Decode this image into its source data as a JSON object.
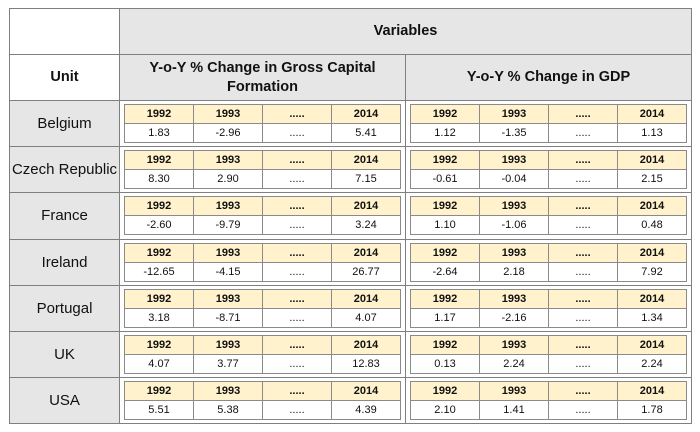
{
  "header": {
    "variables": "Variables",
    "unit": "Unit",
    "gcf": "Y-o-Y % Change in Gross Capital Formation",
    "gdp": "Y-o-Y % Change in GDP"
  },
  "year_labels": [
    "1992",
    "1993",
    ".....",
    "2014"
  ],
  "rows": [
    {
      "unit": "Belgium",
      "gcf_years": [
        "1992",
        "1993",
        ".....",
        "2014"
      ],
      "gcf": [
        "1.83",
        "-2.96",
        ".....",
        "5.41"
      ],
      "gdp_years": [
        "1992",
        "1993",
        ".....",
        "2014"
      ],
      "gdp": [
        "1.12",
        "-1.35",
        ".....",
        "1.13"
      ]
    },
    {
      "unit": "Czech Republic",
      "gcf_years": [
        "1992",
        "1993",
        ".....",
        "2014"
      ],
      "gcf": [
        "8.30",
        "2.90",
        ".....",
        "7.15"
      ],
      "gdp_years": [
        "1992",
        "1993",
        ".....",
        "2014"
      ],
      "gdp": [
        "-0.61",
        "-0.04",
        ".....",
        "2.15"
      ]
    },
    {
      "unit": "France",
      "gcf_years": [
        "1992",
        "1993",
        ".....",
        "2014"
      ],
      "gcf": [
        "-2.60",
        "-9.79",
        ".....",
        "3.24"
      ],
      "gdp_years": [
        "1992",
        "1993",
        ".....",
        "2014"
      ],
      "gdp": [
        "1.10",
        "-1.06",
        ".....",
        "0.48"
      ]
    },
    {
      "unit": "Ireland",
      "gcf_years": [
        "1992",
        "1993",
        ".....",
        "2014"
      ],
      "gcf": [
        "-12.65",
        "-4.15",
        ".....",
        "26.77"
      ],
      "gdp_years": [
        "1992",
        "1993",
        ".....",
        "2014"
      ],
      "gdp": [
        "-2.64",
        "2.18",
        ".....",
        "7.92"
      ]
    },
    {
      "unit": "Portugal",
      "gcf_years": [
        "1992",
        "1993",
        ".....",
        "2014"
      ],
      "gcf": [
        "3.18",
        "-8.71",
        ".....",
        "4.07"
      ],
      "gdp_years": [
        "1992",
        "1993",
        ".....",
        "2014"
      ],
      "gdp": [
        "1.17",
        "-2.16",
        ".....",
        "1.34"
      ]
    },
    {
      "unit": "UK",
      "gcf_years": [
        "1992",
        "1993",
        ".....",
        "2014"
      ],
      "gcf": [
        "4.07",
        "3.77",
        ".....",
        "12.83"
      ],
      "gdp_years": [
        "1992",
        "1993",
        ".....",
        "2014"
      ],
      "gdp": [
        "0.13",
        "2.24",
        ".....",
        "2.24"
      ]
    },
    {
      "unit": "USA",
      "gcf_years": [
        "1992",
        "1993",
        ".....",
        "2014"
      ],
      "gcf": [
        "5.51",
        "5.38",
        ".....",
        "4.39"
      ],
      "gdp_years": [
        "1992",
        "1993",
        ".....",
        "2014"
      ],
      "gdp": [
        "2.10",
        "1.41",
        ".....",
        "1.78"
      ]
    }
  ],
  "colors": {
    "header_grey": "#e7e6e6",
    "year_row_yellow": "#fff2cc",
    "border": "#7f7f7f"
  }
}
